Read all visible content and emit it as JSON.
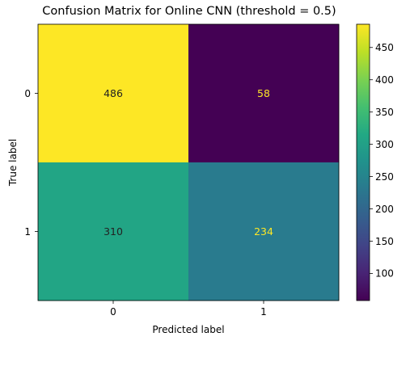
{
  "chart_data": {
    "type": "heatmap",
    "title": "Confusion Matrix for Online CNN (threshold = 0.5)",
    "xlabel": "Predicted label",
    "ylabel": "True label",
    "x_categories": [
      "0",
      "1"
    ],
    "y_categories": [
      "0",
      "1"
    ],
    "values": [
      [
        486,
        58
      ],
      [
        310,
        234
      ]
    ],
    "colormap": "viridis",
    "colorbar": {
      "range": [
        58,
        486
      ],
      "ticks": [
        "100",
        "150",
        "200",
        "250",
        "300",
        "350",
        "400",
        "450"
      ]
    }
  }
}
